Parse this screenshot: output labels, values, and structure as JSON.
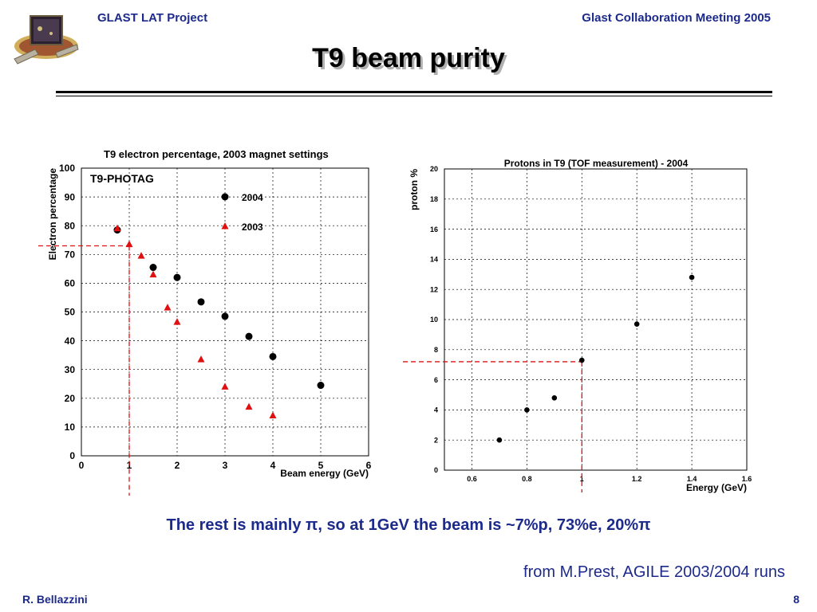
{
  "header": {
    "left": "GLAST LAT Project",
    "right": "Glast Collaboration Meeting 2005"
  },
  "slide": {
    "title": "T9 beam purity",
    "caption": "The rest is mainly π, so at 1GeV the beam is ~7%p, 73%e, 20%π",
    "source": "from M.Prest, AGILE 2003/2004 runs",
    "author": "R. Bellazzini",
    "page": "8"
  },
  "colors": {
    "accent": "#1c2a8c",
    "marker_2003": "#e01010",
    "marker_2004": "#000000",
    "guide_line": "#e01010"
  },
  "chart_data": [
    {
      "type": "scatter",
      "title": "T9 electron percentage, 2003 magnet settings",
      "xlabel": "Beam energy (GeV)",
      "ylabel": "Electron percentage",
      "annotation": "T9-PHOTAG",
      "xlim": [
        0,
        6
      ],
      "ylim": [
        0,
        100
      ],
      "xticks": [
        "0",
        "1",
        "2",
        "3",
        "4",
        "5",
        "6"
      ],
      "yticks": [
        "0",
        "10",
        "20",
        "30",
        "40",
        "50",
        "60",
        "70",
        "80",
        "90",
        "100"
      ],
      "grid": true,
      "legend": "top-right",
      "series": [
        {
          "name": "2004",
          "marker": "circle",
          "points": [
            [
              0.75,
              78.5
            ],
            [
              1.5,
              65.5
            ],
            [
              2.0,
              62.0
            ],
            [
              2.5,
              53.5
            ],
            [
              3.0,
              48.5
            ],
            [
              3.5,
              41.5
            ],
            [
              4.0,
              34.5
            ],
            [
              5.0,
              24.5
            ]
          ]
        },
        {
          "name": "2003",
          "marker": "triangle",
          "points": [
            [
              0.75,
              79.0
            ],
            [
              1.0,
              73.5
            ],
            [
              1.25,
              69.5
            ],
            [
              1.5,
              63.0
            ],
            [
              1.8,
              51.5
            ],
            [
              2.0,
              46.5
            ],
            [
              2.5,
              33.5
            ],
            [
              3.0,
              24.0
            ],
            [
              3.5,
              17.0
            ],
            [
              4.0,
              14.0
            ]
          ]
        }
      ],
      "guide": {
        "x": 1.0,
        "y": 73.0
      }
    },
    {
      "type": "scatter",
      "title": "Protons in T9 (TOF measurement) - 2004",
      "xlabel": "Energy (GeV)",
      "ylabel": "proton %",
      "xlim": [
        0.5,
        1.6
      ],
      "ylim": [
        0,
        20
      ],
      "xticks": [
        "0.6",
        "0.8",
        "1",
        "1.2",
        "1.4",
        "1.6"
      ],
      "yticks": [
        "0",
        "2",
        "4",
        "6",
        "8",
        "10",
        "12",
        "14",
        "16",
        "18",
        "20"
      ],
      "grid": true,
      "series": [
        {
          "marker": "circle",
          "points": [
            [
              0.7,
              2.0
            ],
            [
              0.8,
              4.0
            ],
            [
              0.9,
              4.8
            ],
            [
              1.0,
              7.3
            ],
            [
              1.2,
              9.7
            ],
            [
              1.4,
              12.8
            ]
          ]
        }
      ],
      "guide": {
        "x": 1.0,
        "y": 7.2
      }
    }
  ]
}
